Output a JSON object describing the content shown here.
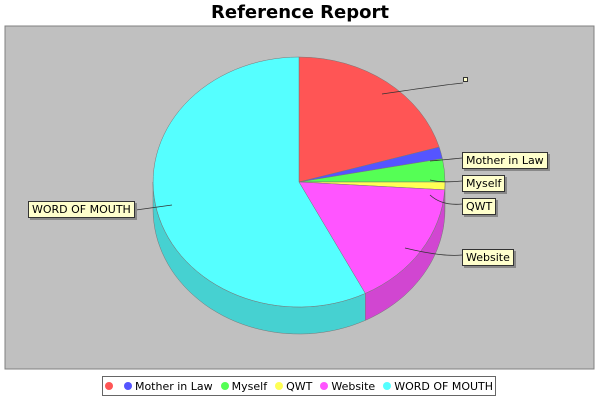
{
  "chart_data": {
    "type": "pie",
    "title": "Reference Report",
    "slices": [
      {
        "label": "",
        "value": 20.5,
        "color": "#ff5555"
      },
      {
        "label": "Mother in Law",
        "value": 1.5,
        "color": "#5555ff"
      },
      {
        "label": "Myself",
        "value": 3.0,
        "color": "#55ff55"
      },
      {
        "label": "QWT",
        "value": 1.0,
        "color": "#ffff55"
      },
      {
        "label": "Website",
        "value": 16.5,
        "color": "#ff55ff"
      },
      {
        "label": "WORD OF MOUTH",
        "value": 57.5,
        "color": "#55ffff"
      }
    ],
    "legend_position": "bottom",
    "style": "3d"
  }
}
